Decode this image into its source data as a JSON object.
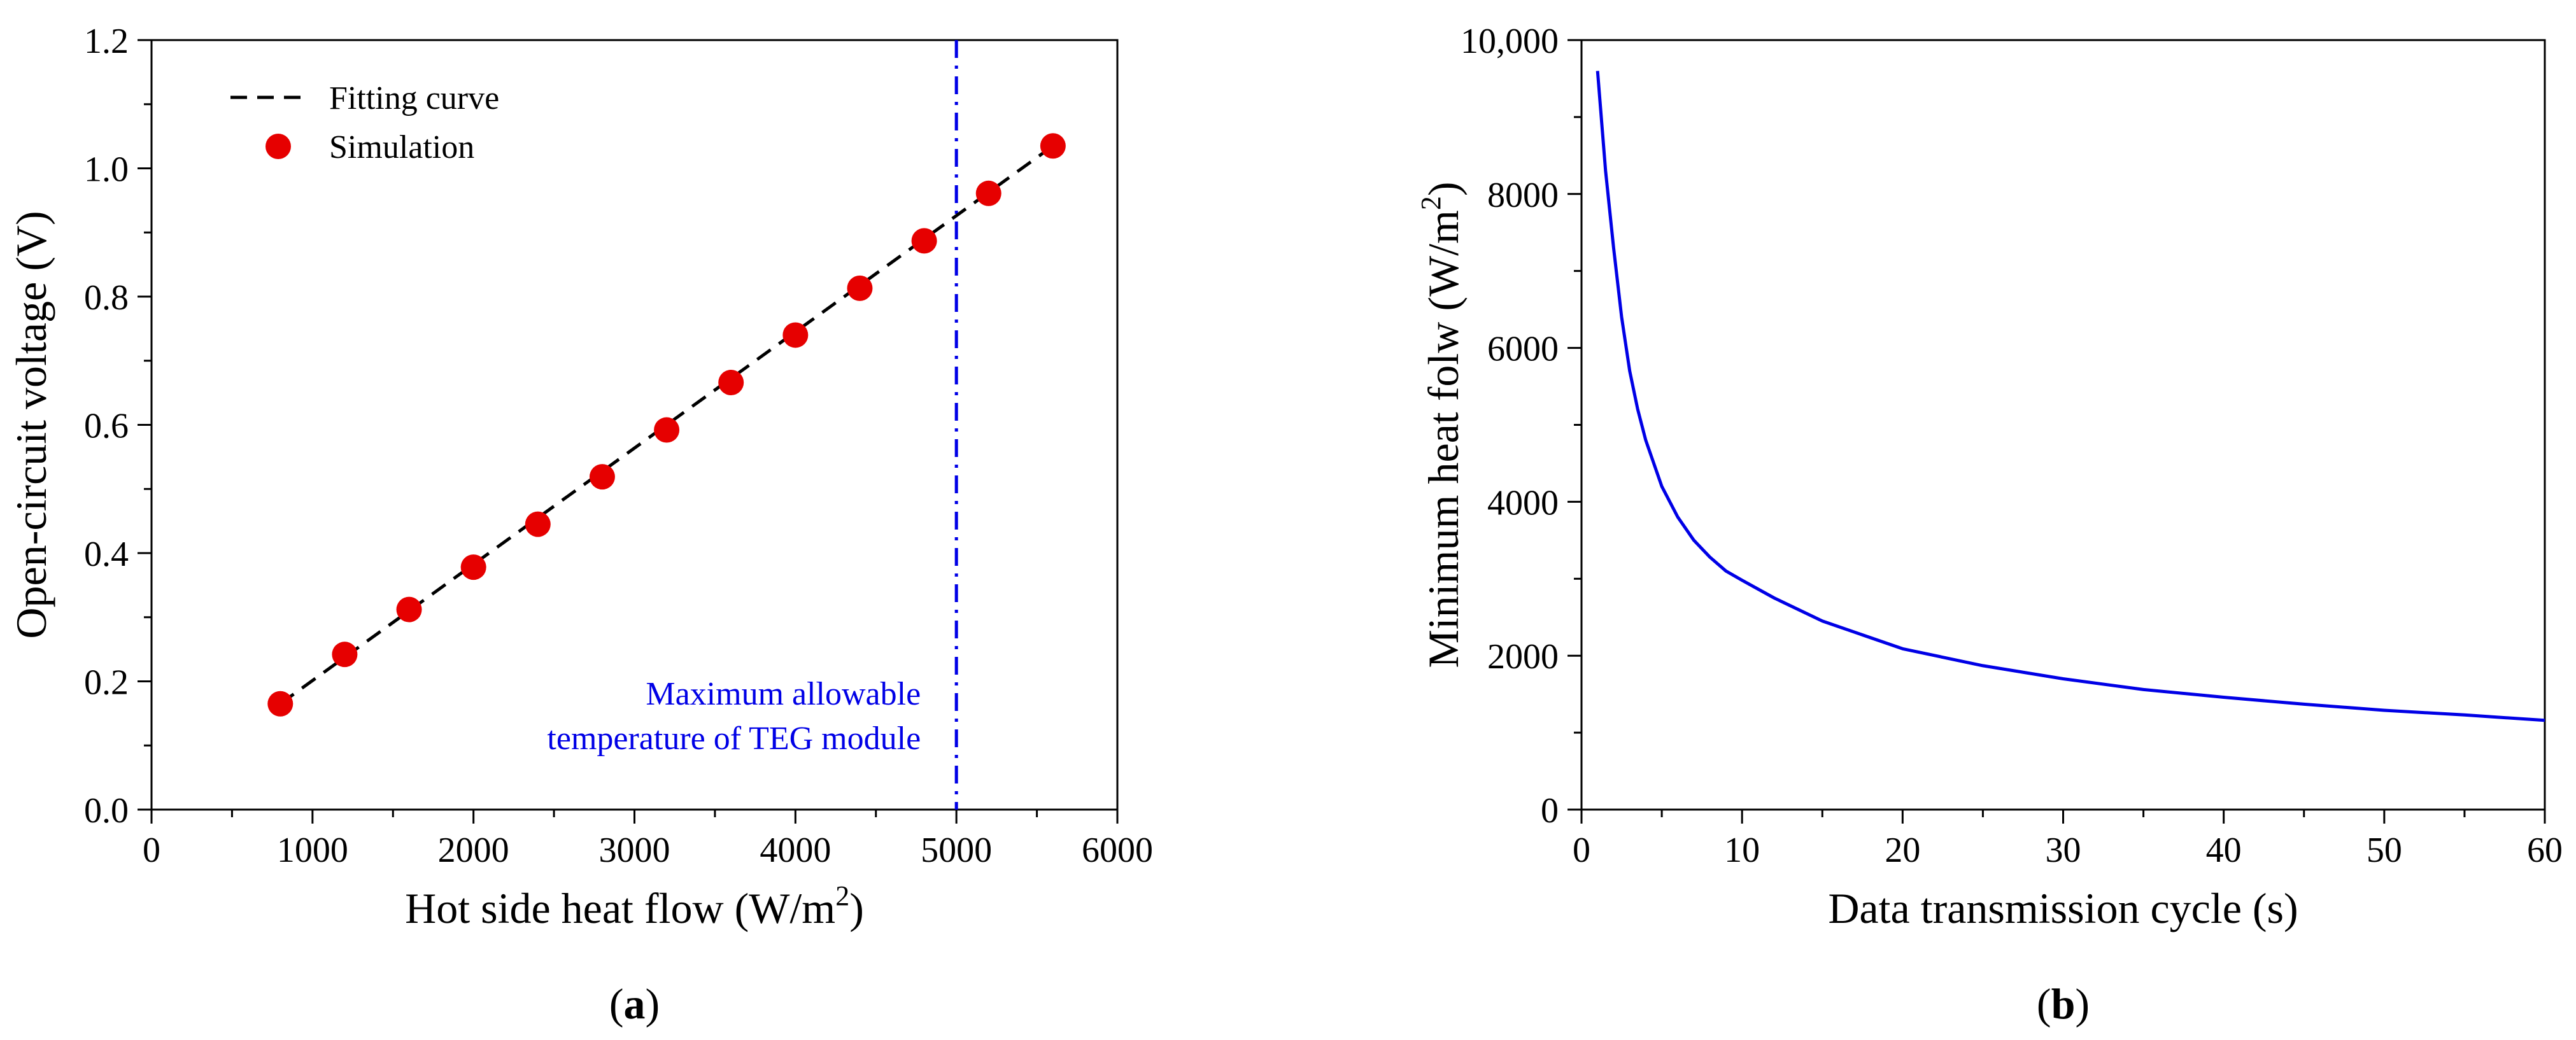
{
  "chart_data": [
    {
      "panel_label_prefix": "(",
      "panel_label": "a",
      "panel_label_suffix": ")",
      "type": "scatter",
      "title": "",
      "xlabel_main": "Hot side heat flow (W/m",
      "xlabel_sup": "2",
      "xlabel_end": ")",
      "ylabel": "Open-circuit voltage (V)",
      "xlim": [
        0,
        6000
      ],
      "ylim": [
        0,
        1.2
      ],
      "xticks": [
        0,
        1000,
        2000,
        3000,
        4000,
        5000,
        6000
      ],
      "xtick_labels": [
        "0",
        "1000",
        "2000",
        "3000",
        "4000",
        "5000",
        "6000"
      ],
      "yticks": [
        0,
        0.2,
        0.4,
        0.6,
        0.8,
        1.0,
        1.2
      ],
      "ytick_labels": [
        "0.0",
        "0.2",
        "0.4",
        "0.6",
        "0.8",
        "1.0",
        "1.2"
      ],
      "legend_position": "top-left",
      "series": [
        {
          "name": "Fitting curve",
          "kind": "line",
          "style": "dashed",
          "color": "#000000",
          "x": [
            800,
            5600
          ],
          "y": [
            0.165,
            1.035
          ]
        },
        {
          "name": "Simulation",
          "kind": "scatter",
          "color": "#e60000",
          "x": [
            800,
            1200,
            1600,
            2000,
            2400,
            2800,
            3200,
            3600,
            4000,
            4400,
            4800,
            5200,
            5600
          ],
          "y": [
            0.165,
            0.242,
            0.312,
            0.378,
            0.445,
            0.519,
            0.592,
            0.666,
            0.74,
            0.813,
            0.887,
            0.961,
            1.035
          ]
        }
      ],
      "vline": {
        "x": 5000,
        "color": "#0000e6",
        "style": "dash-dot"
      },
      "annotation_lines": [
        "Maximum allowable",
        "temperature of TEG module"
      ],
      "annotation_color": "#0000e6"
    },
    {
      "panel_label_prefix": "(",
      "panel_label": "b",
      "panel_label_suffix": ")",
      "type": "line",
      "title": "",
      "xlabel": "Data transmission cycle (s)",
      "ylabel_main": "Minimum heat folw (W/m",
      "ylabel_sup": "2",
      "ylabel_end": ")",
      "xlim": [
        0,
        60
      ],
      "ylim": [
        0,
        10000
      ],
      "xticks": [
        0,
        10,
        20,
        30,
        40,
        50,
        60
      ],
      "xtick_labels": [
        "0",
        "10",
        "20",
        "30",
        "40",
        "50",
        "60"
      ],
      "yticks": [
        0,
        2000,
        4000,
        6000,
        8000,
        10000
      ],
      "ytick_labels": [
        "0",
        "2000",
        "4000",
        "6000",
        "8000",
        "10,000"
      ],
      "series": [
        {
          "name": "Minimum heat flow",
          "color": "#0000e6",
          "x": [
            1,
            1.5,
            2,
            2.5,
            3,
            3.5,
            4,
            5,
            6,
            7,
            8,
            9,
            10,
            12,
            15,
            20,
            25,
            30,
            35,
            40,
            45,
            50,
            55,
            60
          ],
          "y": [
            9600,
            8300,
            7300,
            6400,
            5700,
            5200,
            4800,
            4200,
            3800,
            3500,
            3280,
            3100,
            2980,
            2750,
            2450,
            2090,
            1870,
            1700,
            1560,
            1460,
            1370,
            1290,
            1230,
            1160
          ]
        }
      ]
    }
  ]
}
